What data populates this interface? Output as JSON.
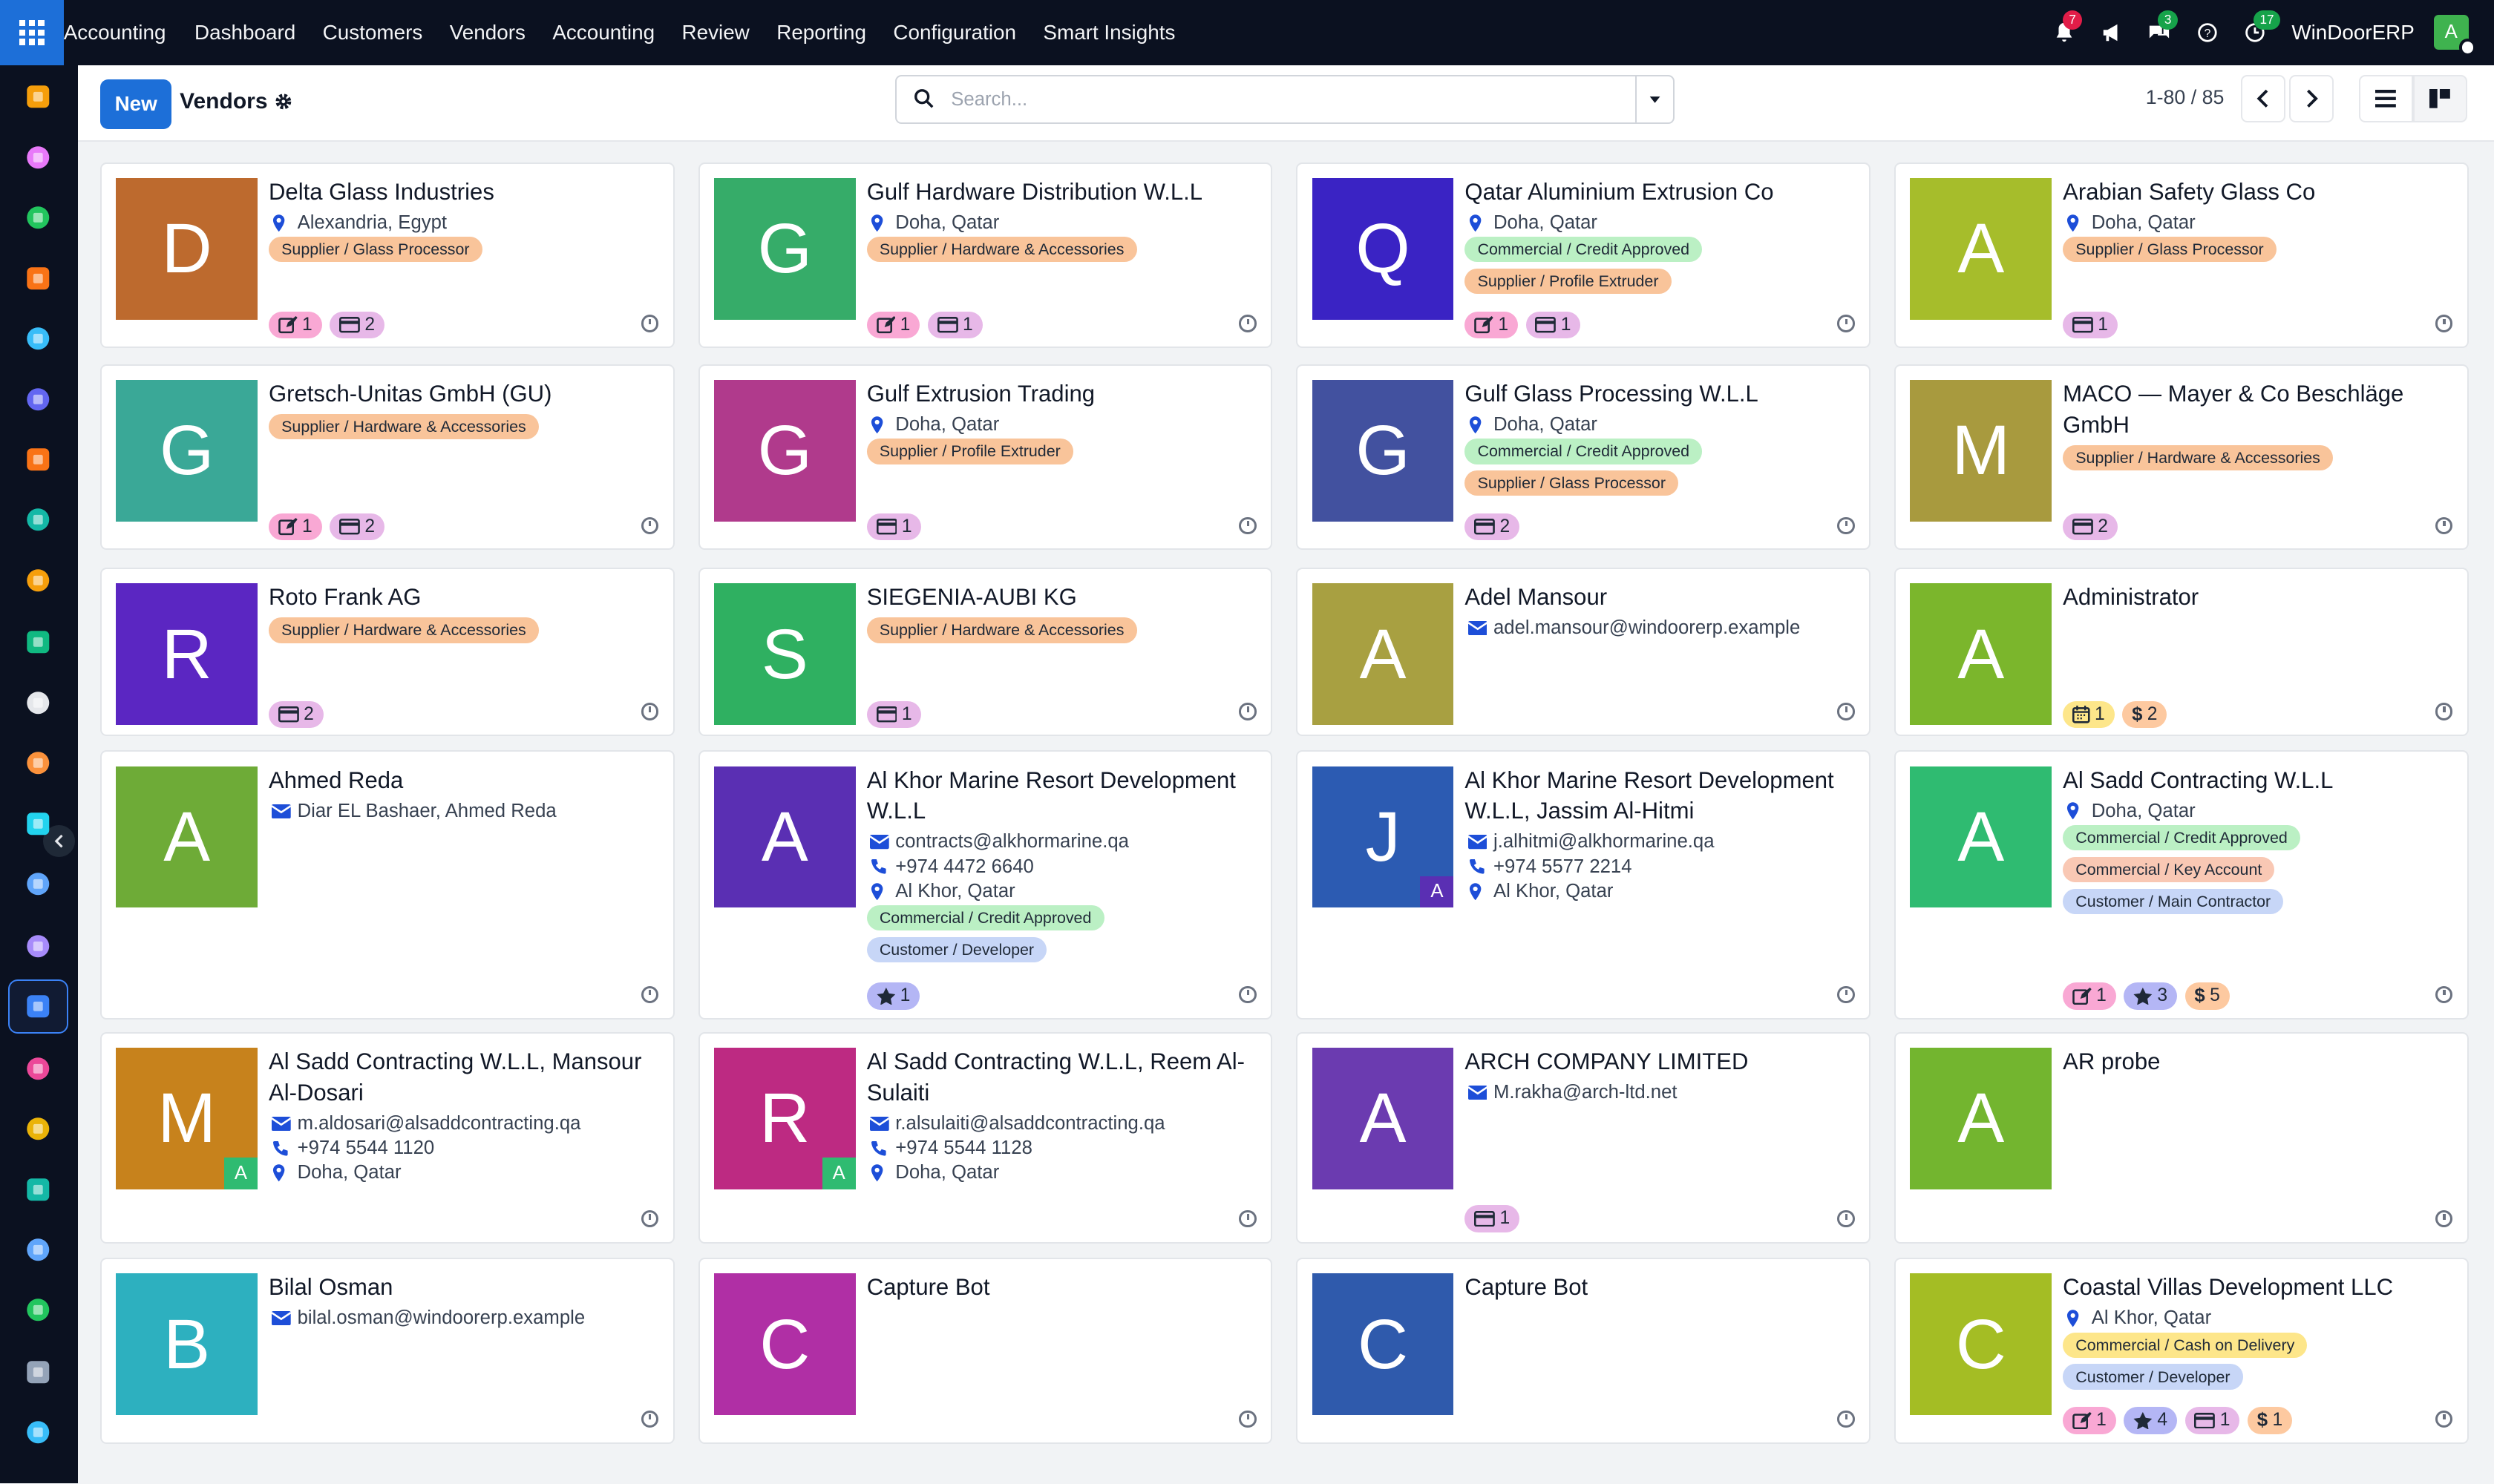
{
  "topbar": {
    "brand": "Accounting",
    "menu": [
      "Dashboard",
      "Customers",
      "Vendors",
      "Accounting",
      "Review",
      "Reporting",
      "Configuration",
      "Smart Insights"
    ],
    "notif_count": "7",
    "discuss_count": "3",
    "activity_count": "17",
    "company": "WinDoorERP",
    "user_initial": "A"
  },
  "control": {
    "new_label": "New",
    "breadcrumb": "Vendors",
    "search_placeholder": "Search...",
    "pager": "1-80 / 85"
  },
  "sidebar_icons": [
    "dashboard-app",
    "photo-app",
    "contacts-app",
    "discuss-app",
    "wave-app",
    "mail-app",
    "chat-app",
    "sign-app",
    "invoicing-app",
    "employees-app",
    "inventory-app",
    "studio-app",
    "todo-app",
    "knowledge-app",
    "packages-app",
    "accounting-app",
    "team-app",
    "calendar-app",
    "pencil-app",
    "spreadsheet-app",
    "whatsapp-app",
    "timer-app",
    "website-app"
  ],
  "colors": {
    "primary": "#1d6fd8",
    "topbar": "#0b1120"
  },
  "cards": [
    {
      "name": "Delta Glass Industries",
      "initial": "D",
      "color": "#bd6a2e",
      "lines": [
        {
          "icon": "pin",
          "text": "Alexandria, Egypt"
        }
      ],
      "tags": [
        {
          "text": "Supplier / Glass Processor",
          "color": "#f9c49a"
        }
      ],
      "counters": [
        {
          "icon": "edit",
          "val": "1",
          "color": "#f9a8d4"
        },
        {
          "icon": "card",
          "val": "2",
          "color": "#e7b8e8"
        }
      ]
    },
    {
      "name": "Gulf Hardware Distribution W.L.L",
      "initial": "G",
      "color": "#36ac69",
      "lines": [
        {
          "icon": "pin",
          "text": "Doha, Qatar"
        }
      ],
      "tags": [
        {
          "text": "Supplier / Hardware & Accessories",
          "color": "#f9c49a"
        }
      ],
      "counters": [
        {
          "icon": "edit",
          "val": "1",
          "color": "#f9a8d4"
        },
        {
          "icon": "card",
          "val": "1",
          "color": "#e7b8e8"
        }
      ]
    },
    {
      "name": "Qatar Aluminium Extrusion Co",
      "initial": "Q",
      "color": "#3a23c4",
      "lines": [
        {
          "icon": "pin",
          "text": "Doha, Qatar"
        }
      ],
      "tags": [
        {
          "text": "Commercial / Credit Approved",
          "color": "#bbf0c4"
        },
        {
          "text": "Supplier / Profile Extruder",
          "color": "#f9c49a"
        }
      ],
      "counters": [
        {
          "icon": "edit",
          "val": "1",
          "color": "#f9a8d4"
        },
        {
          "icon": "card",
          "val": "1",
          "color": "#e7b8e8"
        }
      ]
    },
    {
      "name": "Arabian Safety Glass Co",
      "initial": "A",
      "color": "#a6bd2b",
      "lines": [
        {
          "icon": "pin",
          "text": "Doha, Qatar"
        }
      ],
      "tags": [
        {
          "text": "Supplier / Glass Processor",
          "color": "#f9c49a"
        }
      ],
      "counters": [
        {
          "icon": "card",
          "val": "1",
          "color": "#e7b8e8"
        }
      ]
    },
    {
      "name": "Gretsch-Unitas GmbH (GU)",
      "initial": "G",
      "color": "#3aa897",
      "lines": [],
      "tags": [
        {
          "text": "Supplier / Hardware & Accessories",
          "color": "#f9c49a"
        }
      ],
      "counters": [
        {
          "icon": "edit",
          "val": "1",
          "color": "#f9a8d4"
        },
        {
          "icon": "card",
          "val": "2",
          "color": "#e7b8e8"
        }
      ]
    },
    {
      "name": "Gulf Extrusion Trading",
      "initial": "G",
      "color": "#b03a8c",
      "lines": [
        {
          "icon": "pin",
          "text": "Doha, Qatar"
        }
      ],
      "tags": [
        {
          "text": "Supplier / Profile Extruder",
          "color": "#f9c49a"
        }
      ],
      "counters": [
        {
          "icon": "card",
          "val": "1",
          "color": "#e7b8e8"
        }
      ]
    },
    {
      "name": "Gulf Glass Processing W.L.L",
      "initial": "G",
      "color": "#42519f",
      "lines": [
        {
          "icon": "pin",
          "text": "Doha, Qatar"
        }
      ],
      "tags": [
        {
          "text": "Commercial / Credit Approved",
          "color": "#bbf0c4"
        },
        {
          "text": "Supplier / Glass Processor",
          "color": "#f9c49a"
        }
      ],
      "counters": [
        {
          "icon": "card",
          "val": "2",
          "color": "#e7b8e8"
        }
      ]
    },
    {
      "name": "MACO — Mayer & Co Beschläge GmbH",
      "initial": "M",
      "color": "#a89a3e",
      "lines": [],
      "tags": [
        {
          "text": "Supplier / Hardware & Accessories",
          "color": "#f9c49a"
        }
      ],
      "counters": [
        {
          "icon": "card",
          "val": "2",
          "color": "#e7b8e8"
        }
      ]
    },
    {
      "name": "Roto Frank AG",
      "initial": "R",
      "color": "#5b26c2",
      "lines": [],
      "tags": [
        {
          "text": "Supplier / Hardware & Accessories",
          "color": "#f9c49a"
        }
      ],
      "counters": [
        {
          "icon": "card",
          "val": "2",
          "color": "#e7b8e8"
        }
      ]
    },
    {
      "name": "SIEGENIA-AUBI KG",
      "initial": "S",
      "color": "#2fb061",
      "lines": [],
      "tags": [
        {
          "text": "Supplier / Hardware & Accessories",
          "color": "#f9c49a"
        }
      ],
      "counters": [
        {
          "icon": "card",
          "val": "1",
          "color": "#e7b8e8"
        }
      ]
    },
    {
      "name": "Adel Mansour",
      "initial": "A",
      "color": "#a8a041",
      "lines": [
        {
          "icon": "mail",
          "text": "adel.mansour@windoorerp.example"
        }
      ],
      "tags": [],
      "counters": []
    },
    {
      "name": "Administrator",
      "initial": "A",
      "color": "#7bb62c",
      "lines": [],
      "tags": [],
      "counters": [
        {
          "icon": "cal",
          "val": "1",
          "color": "#fde68a"
        },
        {
          "icon": "dollar",
          "val": "2",
          "color": "#fdc9a0"
        }
      ]
    },
    {
      "name": "Ahmed Reda",
      "initial": "A",
      "color": "#6eab37",
      "lines": [
        {
          "icon": "mail",
          "text": "Diar EL Bashaer, Ahmed Reda"
        }
      ],
      "tags": [],
      "counters": []
    },
    {
      "name": "Al Khor Marine Resort Development W.L.L",
      "initial": "A",
      "color": "#5a2fb3",
      "lines": [
        {
          "icon": "mail",
          "text": "contracts@alkhormarine.qa"
        },
        {
          "icon": "phone",
          "text": "+974 4472 6640"
        },
        {
          "icon": "pin",
          "text": "Al Khor, Qatar"
        }
      ],
      "tags": [
        {
          "text": "Commercial / Credit Approved",
          "color": "#bbf0c4"
        },
        {
          "text": "Customer / Developer",
          "color": "#c7d6f7"
        }
      ],
      "counters": [
        {
          "icon": "star",
          "val": "1",
          "color": "#b4b6f5"
        }
      ]
    },
    {
      "name": "Al Khor Marine Resort Development W.L.L, Jassim Al-Hitmi",
      "initial": "J",
      "color": "#2c5bb2",
      "sub": "A",
      "subcolor": "#5a2fb3",
      "lines": [
        {
          "icon": "mail",
          "text": "j.alhitmi@alkhormarine.qa"
        },
        {
          "icon": "phone",
          "text": "+974 5577 2214"
        },
        {
          "icon": "pin",
          "text": "Al Khor, Qatar"
        }
      ],
      "tags": [],
      "counters": []
    },
    {
      "name": "Al Sadd Contracting W.L.L",
      "initial": "A",
      "color": "#2fbb71",
      "lines": [
        {
          "icon": "pin",
          "text": "Doha, Qatar"
        }
      ],
      "tags": [
        {
          "text": "Commercial / Credit Approved",
          "color": "#bbf0c4"
        },
        {
          "text": "Commercial / Key Account",
          "color": "#f9c8b4"
        },
        {
          "text": "Customer / Main Contractor",
          "color": "#c7d6f7"
        }
      ],
      "counters": [
        {
          "icon": "edit",
          "val": "1",
          "color": "#f9a8d4"
        },
        {
          "icon": "star",
          "val": "3",
          "color": "#b4b6f5"
        },
        {
          "icon": "dollar",
          "val": "5",
          "color": "#fdc9a0"
        }
      ]
    },
    {
      "name": "Al Sadd Contracting W.L.L, Mansour Al-Dosari",
      "initial": "M",
      "color": "#c7821c",
      "sub": "A",
      "subcolor": "#2fbb71",
      "lines": [
        {
          "icon": "mail",
          "text": "m.aldosari@alsaddcontracting.qa"
        },
        {
          "icon": "phone",
          "text": "+974 5544 1120"
        },
        {
          "icon": "pin",
          "text": "Doha, Qatar"
        }
      ],
      "tags": [],
      "counters": []
    },
    {
      "name": "Al Sadd Contracting W.L.L, Reem Al-Sulaiti",
      "initial": "R",
      "color": "#bd2a82",
      "sub": "A",
      "subcolor": "#2fbb71",
      "lines": [
        {
          "icon": "mail",
          "text": "r.alsulaiti@alsaddcontracting.qa"
        },
        {
          "icon": "phone",
          "text": "+974 5544 1128"
        },
        {
          "icon": "pin",
          "text": "Doha, Qatar"
        }
      ],
      "tags": [],
      "counters": []
    },
    {
      "name": "ARCH COMPANY LIMITED",
      "initial": "A",
      "color": "#6b3bb0",
      "lines": [
        {
          "icon": "mail",
          "text": "M.rakha@arch-ltd.net"
        }
      ],
      "tags": [],
      "counters": [
        {
          "icon": "card",
          "val": "1",
          "color": "#e7b8e8"
        }
      ]
    },
    {
      "name": "AR probe",
      "initial": "A",
      "color": "#73b52f",
      "lines": [],
      "tags": [],
      "counters": []
    },
    {
      "name": "Bilal Osman",
      "initial": "B",
      "color": "#2db0bf",
      "lines": [
        {
          "icon": "mail",
          "text": "bilal.osman@windoorerp.example"
        }
      ],
      "tags": [],
      "counters": []
    },
    {
      "name": "Capture Bot",
      "initial": "C",
      "color": "#b02fa5",
      "lines": [],
      "tags": [],
      "counters": []
    },
    {
      "name": "Capture Bot",
      "initial": "C",
      "color": "#2f5aac",
      "lines": [],
      "tags": [],
      "counters": []
    },
    {
      "name": "Coastal Villas Development LLC",
      "initial": "C",
      "color": "#a4bd24",
      "lines": [
        {
          "icon": "pin",
          "text": "Al Khor, Qatar"
        }
      ],
      "tags": [
        {
          "text": "Commercial / Cash on Delivery",
          "color": "#fde68a"
        },
        {
          "text": "Customer / Developer",
          "color": "#c7d6f7"
        }
      ],
      "counters": [
        {
          "icon": "edit",
          "val": "1",
          "color": "#f9a8d4"
        },
        {
          "icon": "star",
          "val": "4",
          "color": "#b4b6f5"
        },
        {
          "icon": "card",
          "val": "1",
          "color": "#e7b8e8"
        },
        {
          "icon": "dollar",
          "val": "1",
          "color": "#fdc9a0"
        }
      ]
    }
  ]
}
